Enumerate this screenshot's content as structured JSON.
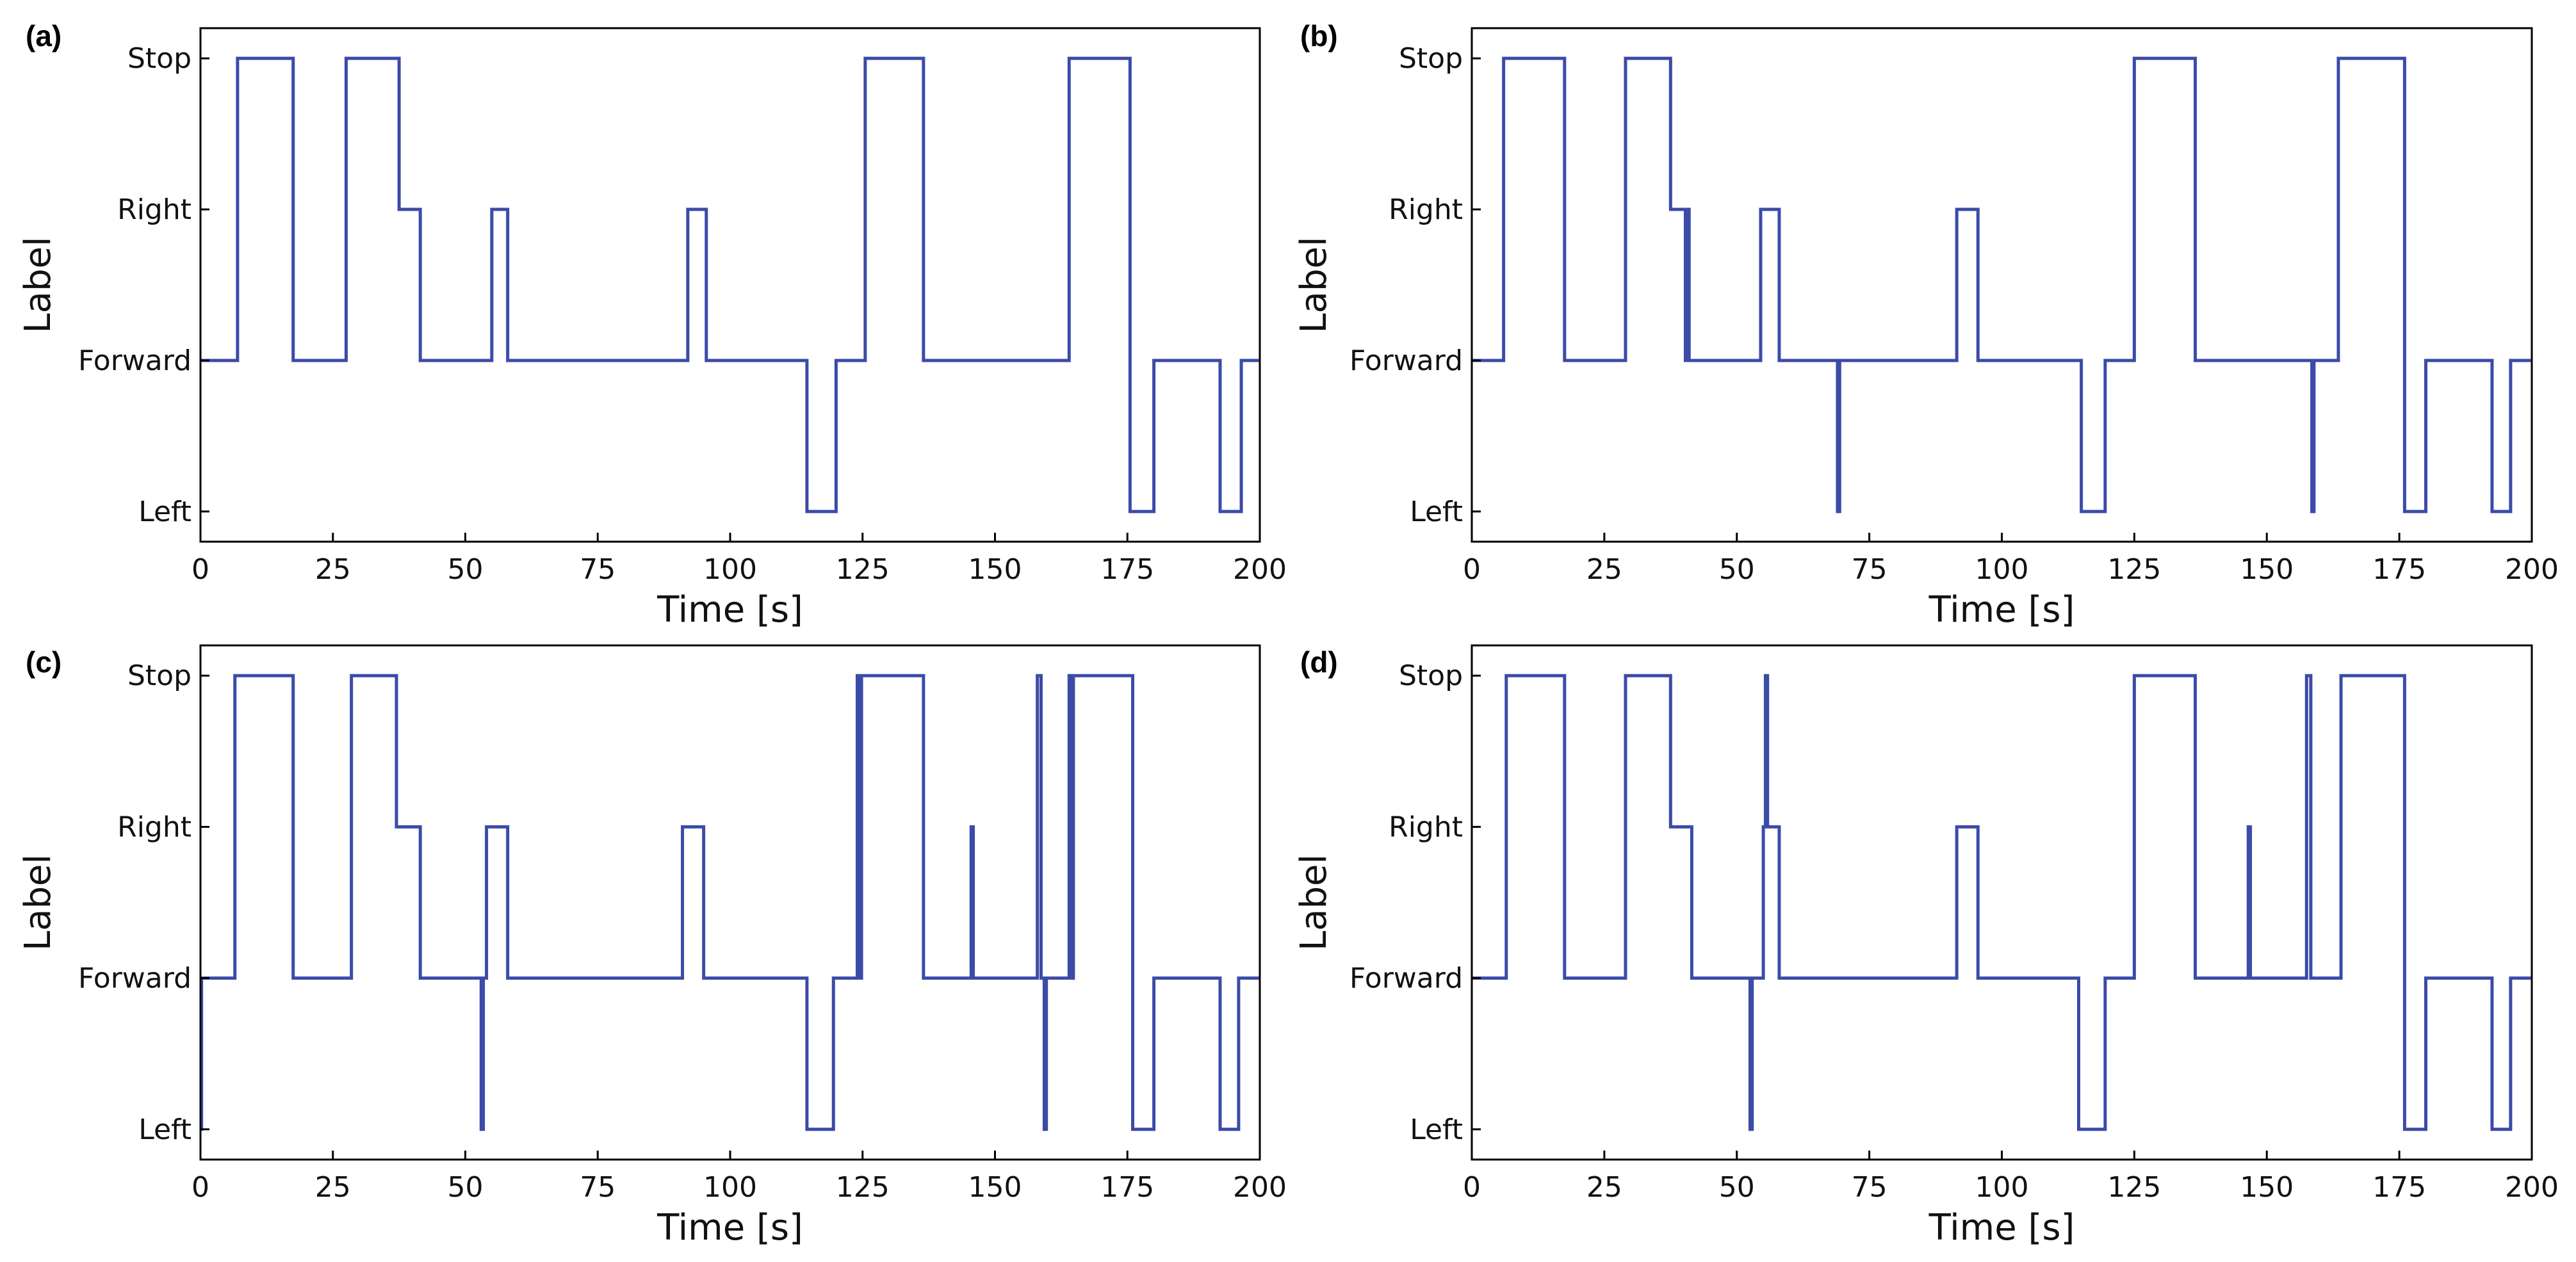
{
  "chart_data": [
    {
      "type": "line",
      "panel": "(a)",
      "xlabel": "Time [s]",
      "ylabel": "Label",
      "xlim": [
        0,
        200
      ],
      "xticks": [
        0,
        25,
        50,
        75,
        100,
        125,
        150,
        175,
        200
      ],
      "ylevels": [
        "Left",
        "Forward",
        "Right",
        "Stop"
      ],
      "step": [
        [
          0,
          "Forward"
        ],
        [
          7,
          "Stop"
        ],
        [
          17.5,
          "Forward"
        ],
        [
          27.5,
          "Stop"
        ],
        [
          37.5,
          "Right"
        ],
        [
          41.5,
          "Forward"
        ],
        [
          55,
          "Right"
        ],
        [
          58,
          "Forward"
        ],
        [
          92,
          "Right"
        ],
        [
          95.5,
          "Forward"
        ],
        [
          114.5,
          "Left"
        ],
        [
          120,
          "Forward"
        ],
        [
          125.5,
          "Stop"
        ],
        [
          136.5,
          "Forward"
        ],
        [
          164,
          "Stop"
        ],
        [
          175.5,
          "Left"
        ],
        [
          180,
          "Forward"
        ],
        [
          192.5,
          "Left"
        ],
        [
          196.5,
          "Forward"
        ],
        [
          200,
          "Forward"
        ]
      ]
    },
    {
      "type": "line",
      "panel": "(b)",
      "xlabel": "Time [s]",
      "ylabel": "Label",
      "xlim": [
        0,
        200
      ],
      "xticks": [
        0,
        25,
        50,
        75,
        100,
        125,
        150,
        175,
        200
      ],
      "ylevels": [
        "Left",
        "Forward",
        "Right",
        "Stop"
      ],
      "step": [
        [
          0,
          "Forward"
        ],
        [
          6,
          "Stop"
        ],
        [
          17.5,
          "Forward"
        ],
        [
          29,
          "Stop"
        ],
        [
          37.5,
          "Right"
        ],
        [
          40.3,
          "Forward"
        ],
        [
          40.6,
          "Right"
        ],
        [
          41,
          "Forward"
        ],
        [
          54.5,
          "Right"
        ],
        [
          58,
          "Forward"
        ],
        [
          69,
          "Left"
        ],
        [
          69.4,
          "Forward"
        ],
        [
          91.5,
          "Right"
        ],
        [
          95.5,
          "Forward"
        ],
        [
          115,
          "Left"
        ],
        [
          119.5,
          "Forward"
        ],
        [
          125,
          "Stop"
        ],
        [
          136.5,
          "Forward"
        ],
        [
          158.5,
          "Left"
        ],
        [
          158.9,
          "Forward"
        ],
        [
          163.5,
          "Stop"
        ],
        [
          176,
          "Left"
        ],
        [
          180,
          "Forward"
        ],
        [
          192.5,
          "Left"
        ],
        [
          196,
          "Forward"
        ],
        [
          200,
          "Forward"
        ]
      ]
    },
    {
      "type": "line",
      "panel": "(c)",
      "xlabel": "Time [s]",
      "ylabel": "Label",
      "xlim": [
        0,
        200
      ],
      "xticks": [
        0,
        25,
        50,
        75,
        100,
        125,
        150,
        175,
        200
      ],
      "ylevels": [
        "Left",
        "Forward",
        "Right",
        "Stop"
      ],
      "step": [
        [
          0,
          "Left"
        ],
        [
          0.2,
          "Forward"
        ],
        [
          6.5,
          "Stop"
        ],
        [
          17.5,
          "Forward"
        ],
        [
          28.5,
          "Stop"
        ],
        [
          37,
          "Right"
        ],
        [
          41.5,
          "Forward"
        ],
        [
          53,
          "Left"
        ],
        [
          53.4,
          "Forward"
        ],
        [
          54,
          "Right"
        ],
        [
          58,
          "Forward"
        ],
        [
          91,
          "Right"
        ],
        [
          95,
          "Forward"
        ],
        [
          114.5,
          "Left"
        ],
        [
          119.5,
          "Forward"
        ],
        [
          124,
          "Stop"
        ],
        [
          124.4,
          "Forward"
        ],
        [
          124.8,
          "Stop"
        ],
        [
          136.5,
          "Forward"
        ],
        [
          145.5,
          "Right"
        ],
        [
          145.9,
          "Forward"
        ],
        [
          158,
          "Stop"
        ],
        [
          158.7,
          "Forward"
        ],
        [
          159.3,
          "Left"
        ],
        [
          159.7,
          "Forward"
        ],
        [
          164,
          "Stop"
        ],
        [
          164.4,
          "Forward"
        ],
        [
          164.8,
          "Stop"
        ],
        [
          176,
          "Left"
        ],
        [
          180,
          "Forward"
        ],
        [
          192.5,
          "Left"
        ],
        [
          196,
          "Forward"
        ],
        [
          200,
          "Forward"
        ]
      ]
    },
    {
      "type": "line",
      "panel": "(d)",
      "xlabel": "Time [s]",
      "ylabel": "Label",
      "xlim": [
        0,
        200
      ],
      "xticks": [
        0,
        25,
        50,
        75,
        100,
        125,
        150,
        175,
        200
      ],
      "ylevels": [
        "Left",
        "Forward",
        "Right",
        "Stop"
      ],
      "step": [
        [
          0,
          "Forward"
        ],
        [
          6.5,
          "Stop"
        ],
        [
          17.5,
          "Forward"
        ],
        [
          29,
          "Stop"
        ],
        [
          37.5,
          "Right"
        ],
        [
          41.5,
          "Forward"
        ],
        [
          52.5,
          "Left"
        ],
        [
          52.9,
          "Forward"
        ],
        [
          55,
          "Right"
        ],
        [
          55.4,
          "Stop"
        ],
        [
          55.8,
          "Right"
        ],
        [
          58,
          "Forward"
        ],
        [
          91.5,
          "Right"
        ],
        [
          95.5,
          "Forward"
        ],
        [
          114.5,
          "Left"
        ],
        [
          119.5,
          "Forward"
        ],
        [
          125,
          "Stop"
        ],
        [
          136.5,
          "Forward"
        ],
        [
          146.5,
          "Right"
        ],
        [
          146.9,
          "Forward"
        ],
        [
          157.5,
          "Stop"
        ],
        [
          158.3,
          "Forward"
        ],
        [
          164,
          "Stop"
        ],
        [
          176,
          "Left"
        ],
        [
          180,
          "Forward"
        ],
        [
          192.5,
          "Left"
        ],
        [
          196,
          "Forward"
        ],
        [
          200,
          "Forward"
        ]
      ]
    }
  ],
  "colors": {
    "line": "#3b4ba8",
    "axes": "#000000"
  }
}
